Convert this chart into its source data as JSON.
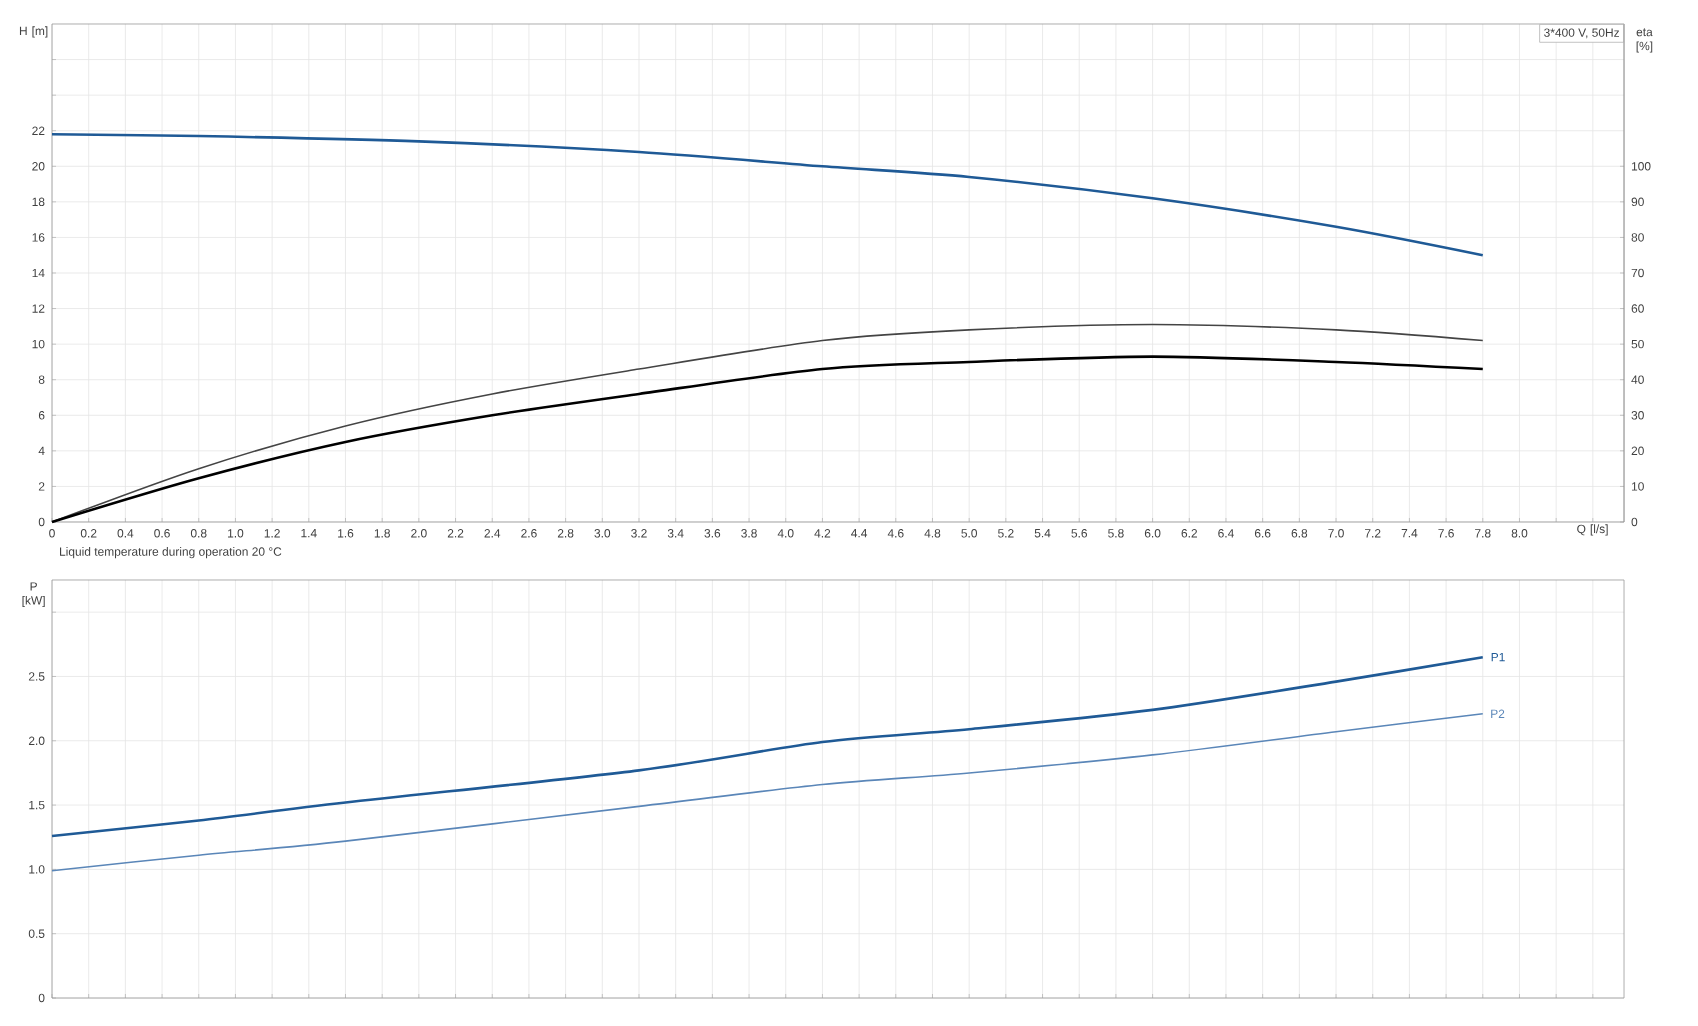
{
  "chart_data": [
    {
      "type": "line",
      "xlabel": "Q [l/s]",
      "ylabel": "H [m]",
      "y2label": "eta [%]",
      "annotations": [
        "3*400 V, 50Hz",
        "Liquid temperature during operation    20 °C"
      ],
      "xlim": [
        0,
        8.57
      ],
      "xticks": [
        0,
        {
          "value": 0.2,
          "label": "0.2"
        },
        {
          "value": 0.4,
          "label": "0.4"
        },
        {
          "value": 0.6,
          "label": "0.6"
        },
        {
          "value": 0.8,
          "label": "0.8"
        },
        {
          "value": 1,
          "label": "1.0"
        },
        {
          "value": 1.2,
          "label": "1.2"
        },
        {
          "value": 1.4,
          "label": "1.4"
        },
        {
          "value": 1.6,
          "label": "1.6"
        },
        {
          "value": 1.8,
          "label": "1.8"
        },
        {
          "value": 2,
          "label": "2.0"
        },
        {
          "value": 2.2,
          "label": "2.2"
        },
        {
          "value": 2.4,
          "label": "2.4"
        },
        {
          "value": 2.6,
          "label": "2.6"
        },
        {
          "value": 2.8,
          "label": "2.8"
        },
        {
          "value": 3,
          "label": "3.0"
        },
        {
          "value": 3.2,
          "label": "3.2"
        },
        {
          "value": 3.4,
          "label": "3.4"
        },
        {
          "value": 3.6,
          "label": "3.6"
        },
        {
          "value": 3.8,
          "label": "3.8"
        },
        {
          "value": 4,
          "label": "4.0"
        },
        {
          "value": 4.2,
          "label": "4.2"
        },
        {
          "value": 4.4,
          "label": "4.4"
        },
        {
          "value": 4.6,
          "label": "4.6"
        },
        {
          "value": 4.8,
          "label": "4.8"
        },
        {
          "value": 5,
          "label": "5.0"
        },
        {
          "value": 5.2,
          "label": "5.2"
        },
        {
          "value": 5.4,
          "label": "5.4"
        },
        {
          "value": 5.6,
          "label": "5.6"
        },
        {
          "value": 5.8,
          "label": "5.8"
        },
        {
          "value": 6,
          "label": "6.0"
        },
        {
          "value": 6.2,
          "label": "6.2"
        },
        {
          "value": 6.4,
          "label": "6.4"
        },
        {
          "value": 6.6,
          "label": "6.6"
        },
        {
          "value": 6.8,
          "label": "6.8"
        },
        {
          "value": 7,
          "label": "7.0"
        },
        {
          "value": 7.2,
          "label": "7.2"
        },
        {
          "value": 7.4,
          "label": "7.4"
        },
        {
          "value": 7.6,
          "label": "7.6"
        },
        {
          "value": 7.8,
          "label": "7.8"
        },
        {
          "value": 8,
          "label": "8.0"
        },
        {
          "value": 8.2,
          "label": null
        },
        {
          "value": 8.4,
          "label": null
        }
      ],
      "ylim": [
        0,
        28
      ],
      "yticks": [
        0,
        2,
        4,
        6,
        8,
        10,
        12,
        14,
        16,
        18,
        20,
        22,
        {
          "value": 24,
          "label": null
        },
        {
          "value": 26,
          "label": null
        }
      ],
      "y2lim": [
        0,
        140
      ],
      "y2ticks": [
        0,
        10,
        20,
        30,
        40,
        50,
        60,
        70,
        80,
        90,
        100
      ],
      "grid": true,
      "series": [
        {
          "color": "#1f5a96",
          "x": [
            0,
            0.8,
            2.0,
            3.2,
            4.2,
            5.0,
            6.0,
            7.0,
            7.8
          ],
          "values": [
            21.8,
            21.7,
            21.4,
            20.8,
            20.0,
            19.4,
            18.2,
            16.6,
            15.0
          ]
        },
        {
          "color": "#444444",
          "axis": "y2",
          "x": [
            0,
            0.8,
            1.6,
            2.4,
            3.2,
            4.2,
            5.0,
            6.0,
            7.0,
            7.8
          ],
          "values": [
            0,
            15,
            27,
            36,
            43,
            51,
            54,
            55.5,
            54,
            51
          ]
        },
        {
          "color": "#000000",
          "axis": "y2",
          "x": [
            0,
            0.8,
            1.6,
            2.4,
            3.2,
            4.2,
            5.0,
            6.0,
            7.0,
            7.8
          ],
          "values": [
            0,
            12.3,
            22.5,
            30,
            36,
            43,
            45,
            46.5,
            45,
            43
          ]
        }
      ]
    },
    {
      "type": "line",
      "ylabel": "P [kW]",
      "xlim": [
        0,
        8.57
      ],
      "xticks": [
        0,
        0.2,
        0.4,
        0.6,
        0.8,
        1,
        1.2,
        1.4,
        1.6,
        1.8,
        2,
        2.2,
        2.4,
        2.6,
        2.8,
        3,
        3.2,
        3.4,
        3.6,
        3.8,
        4,
        4.2,
        4.4,
        4.6,
        4.8,
        5,
        5.2,
        5.4,
        5.6,
        5.8,
        6,
        6.2,
        6.4,
        6.6,
        6.8,
        7,
        7.2,
        7.4,
        7.6,
        7.8,
        8,
        8.2,
        8.4
      ],
      "ylim": [
        0,
        3.25
      ],
      "yticks": [
        0,
        0.5,
        {
          "value": 1,
          "label": "1.0"
        },
        1.5,
        {
          "value": 2,
          "label": "2.0"
        },
        2.5,
        {
          "value": 3,
          "label": null
        }
      ],
      "tick_labels": "y",
      "grid": true,
      "series": [
        {
          "name": "P1",
          "color": "#1f5a96",
          "x": [
            0,
            0.8,
            1.6,
            3.2,
            4.2,
            5.0,
            6.0,
            7.0,
            7.8
          ],
          "values": [
            1.26,
            1.38,
            1.52,
            1.77,
            1.99,
            2.09,
            2.24,
            2.46,
            2.65
          ]
        },
        {
          "name": "P2",
          "color": "#5a86b8",
          "x": [
            0,
            0.8,
            1.6,
            3.2,
            4.2,
            5.0,
            6.0,
            7.0,
            7.8
          ],
          "values": [
            0.99,
            1.11,
            1.22,
            1.49,
            1.66,
            1.75,
            1.89,
            2.07,
            2.21
          ]
        }
      ]
    }
  ]
}
